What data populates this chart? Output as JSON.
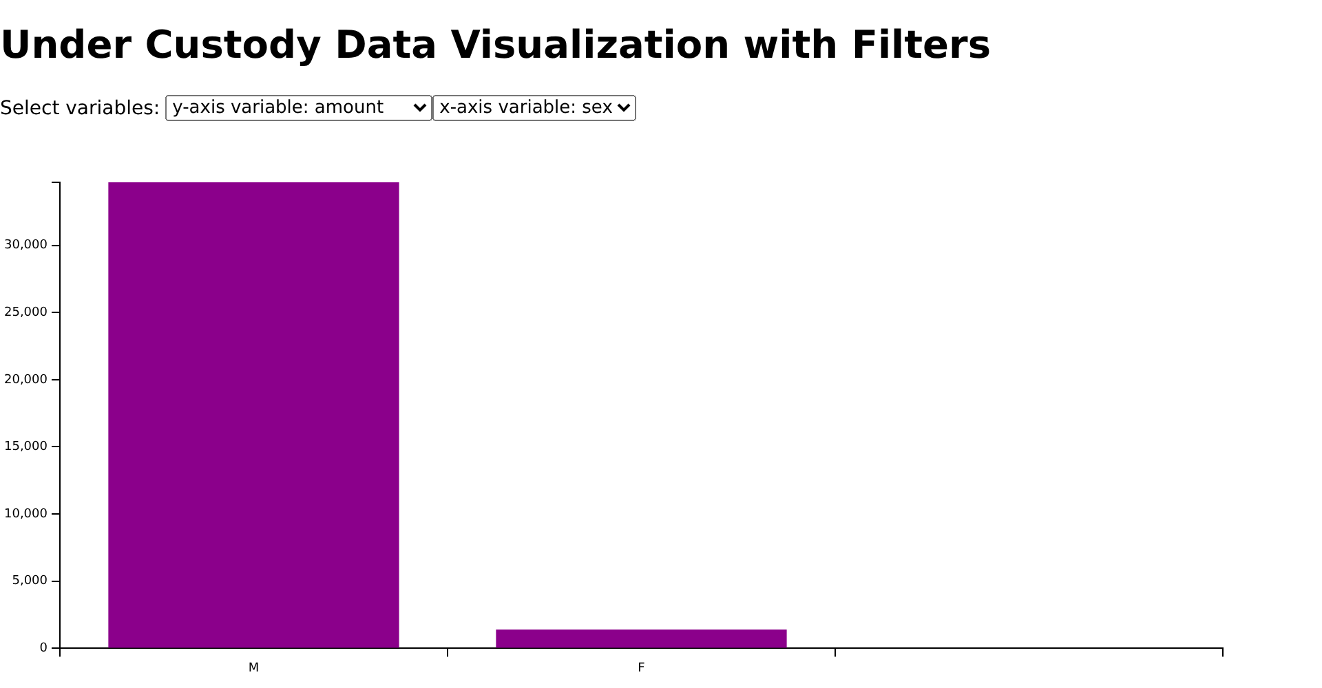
{
  "chart_data": {
    "type": "bar",
    "title": "Under Custody Data Visualization with Filters",
    "annotations": [
      "Select variables:",
      "y-axis variable: amount",
      "x-axis variable: sex"
    ],
    "categories": [
      "M",
      "F",
      null
    ],
    "values": [
      34700,
      1400,
      0
    ],
    "color": "#8b008b",
    "ylim": [
      0,
      34700
    ],
    "yticks": [
      0,
      {
        "value": 5000,
        "label": "5,000"
      },
      {
        "value": 10000,
        "label": "10,000"
      },
      {
        "value": 15000,
        "label": "15,000"
      },
      {
        "value": 20000,
        "label": "20,000"
      },
      {
        "value": 25000,
        "label": "25,000"
      },
      {
        "value": 30000,
        "label": "30,000"
      },
      {
        "value": 34700,
        "label": null
      }
    ],
    "grid": false,
    "legend": false
  }
}
